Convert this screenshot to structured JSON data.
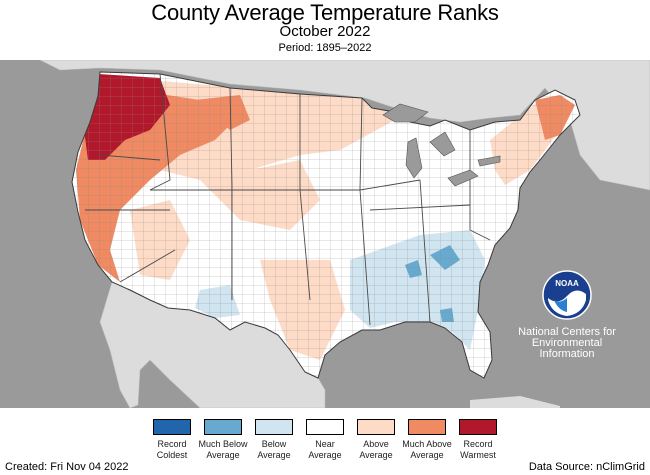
{
  "header": {
    "title": "County Average Temperature Ranks",
    "subtitle": "October 2022",
    "period": "Period: 1895–2022"
  },
  "logo": {
    "acronym": "NOAA",
    "org_line1": "National Centers for",
    "org_line2": "Environmental",
    "org_line3": "Information"
  },
  "legend": {
    "items": [
      {
        "label": "Record Coldest",
        "color": "#2166ac"
      },
      {
        "label": "Much Below Average",
        "color": "#67a9cf"
      },
      {
        "label": "Below Average",
        "color": "#d1e5f0"
      },
      {
        "label": "Near Average",
        "color": "#ffffff"
      },
      {
        "label": "Above Average",
        "color": "#fddbc7"
      },
      {
        "label": "Much Above Average",
        "color": "#ef8a62"
      },
      {
        "label": "Record Warmest",
        "color": "#b2182b"
      }
    ]
  },
  "footer": {
    "created": "Created: Fri Nov 04 2022",
    "source": "Data Source: nClimGrid"
  },
  "colors": {
    "ocean": "#9a9a9a",
    "land_outside": "#dcdcdc",
    "lakes": "#9a9a9a",
    "county_lines": "#8a8a8a"
  }
}
